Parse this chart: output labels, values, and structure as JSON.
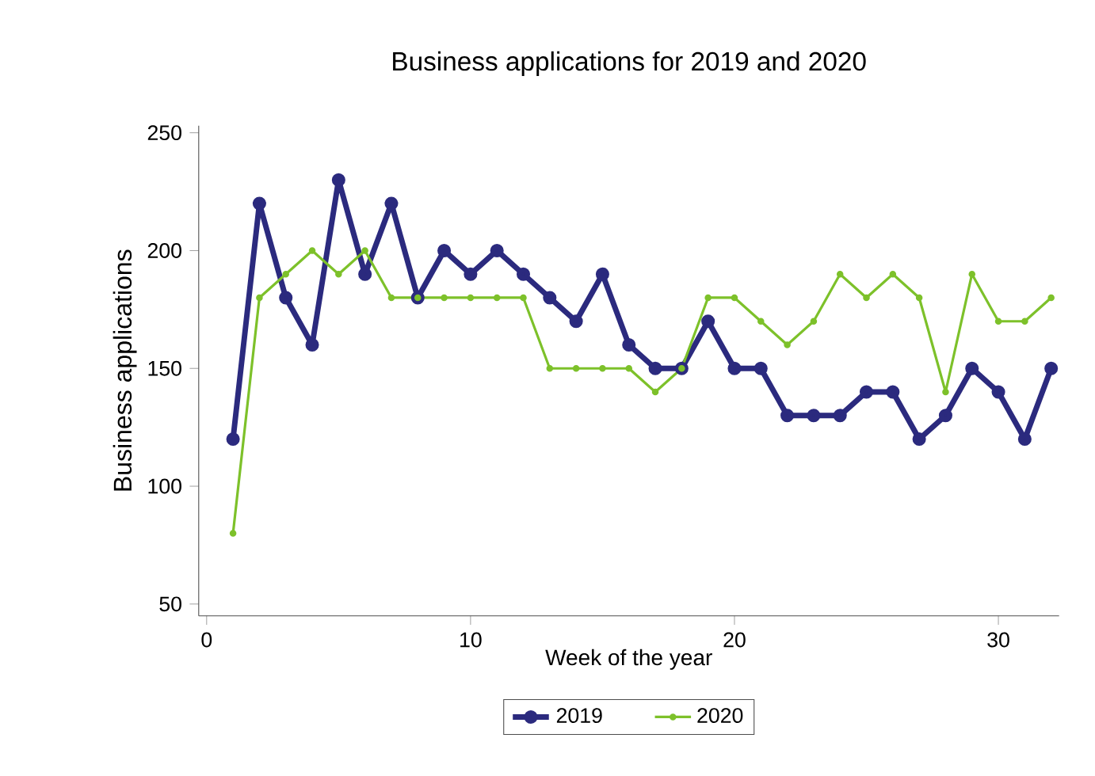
{
  "chart_data": {
    "type": "line",
    "title": "Business applications for 2019 and 2020",
    "xlabel": "Week of the year",
    "ylabel": "Business applications",
    "x": [
      1,
      2,
      3,
      4,
      5,
      6,
      7,
      8,
      9,
      10,
      11,
      12,
      13,
      14,
      15,
      16,
      17,
      18,
      19,
      20,
      21,
      22,
      23,
      24,
      25,
      26,
      27,
      28,
      29,
      30,
      31,
      32
    ],
    "series": [
      {
        "name": "2019",
        "color": "#2b2a7e",
        "values": [
          120,
          220,
          180,
          160,
          230,
          190,
          220,
          180,
          200,
          190,
          200,
          190,
          180,
          170,
          190,
          160,
          150,
          150,
          170,
          150,
          150,
          130,
          130,
          130,
          140,
          140,
          120,
          130,
          150,
          140,
          120,
          150
        ]
      },
      {
        "name": "2020",
        "color": "#7dc12a",
        "values": [
          80,
          180,
          190,
          200,
          190,
          200,
          180,
          180,
          180,
          180,
          180,
          180,
          150,
          150,
          150,
          150,
          140,
          150,
          180,
          180,
          170,
          160,
          170,
          190,
          180,
          190,
          180,
          140,
          190,
          170,
          170,
          180
        ]
      }
    ],
    "xlim": [
      -0.3,
      32.3
    ],
    "ylim": [
      45,
      253
    ],
    "xticks": [
      0,
      10,
      20,
      30
    ],
    "yticks": [
      50,
      100,
      150,
      200,
      250
    ],
    "grid": false,
    "legend": "bottom",
    "marker": "circle",
    "line_style": "solid"
  }
}
